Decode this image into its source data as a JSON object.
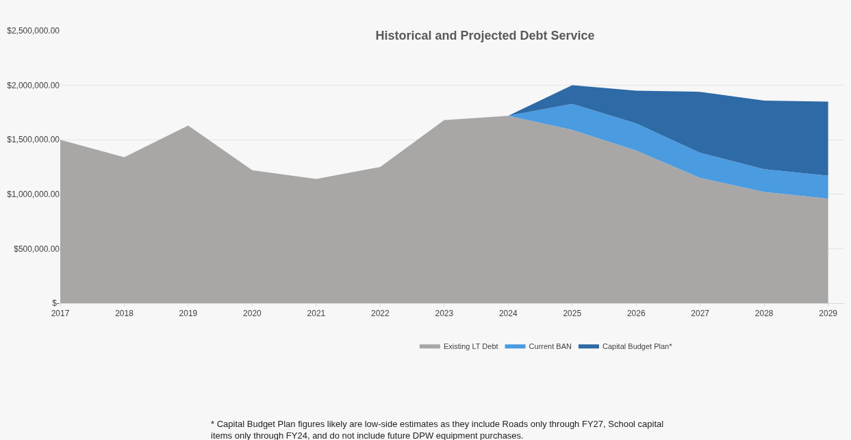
{
  "chart_data": {
    "type": "area",
    "stacked": true,
    "title": "Historical and Projected Debt Service",
    "categories": [
      "2017",
      "2018",
      "2019",
      "2020",
      "2021",
      "2022",
      "2023",
      "2024",
      "2025",
      "2026",
      "2027",
      "2028",
      "2029"
    ],
    "series": [
      {
        "name": "Existing LT Debt",
        "color": "#a9a7a6",
        "values": [
          1500000,
          1340000,
          1630000,
          1220000,
          1140000,
          1250000,
          1680000,
          1720000,
          1590000,
          1400000,
          1150000,
          1020000,
          960000
        ]
      },
      {
        "name": "Current BAN",
        "color": "#4a9be0",
        "values": [
          null,
          null,
          null,
          null,
          null,
          null,
          null,
          0,
          240000,
          250000,
          230000,
          210000,
          210000
        ]
      },
      {
        "name": "Capital Budget Plan*",
        "color": "#2e6aa6",
        "values": [
          null,
          null,
          null,
          null,
          null,
          null,
          null,
          0,
          170000,
          300000,
          560000,
          630000,
          680000
        ]
      }
    ],
    "ylim": [
      0,
      2500000
    ],
    "yticks": [
      {
        "value": 0,
        "label": "$-"
      },
      {
        "value": 500000,
        "label": "$500,000.00"
      },
      {
        "value": 1000000,
        "label": "$1,000,000.00"
      },
      {
        "value": 1500000,
        "label": "$1,500,000.00"
      },
      {
        "value": 2000000,
        "label": "$2,000,000.00"
      },
      {
        "value": 2500000,
        "label": "$2,500,000.00"
      }
    ],
    "grid": "y",
    "legend": "bottom",
    "annotations": [
      "* Capital Budget Plan figures likely are low-side estimates as they include Roads only through FY27, School capital items only through FY24, and do not include future DPW equipment purchases."
    ]
  }
}
